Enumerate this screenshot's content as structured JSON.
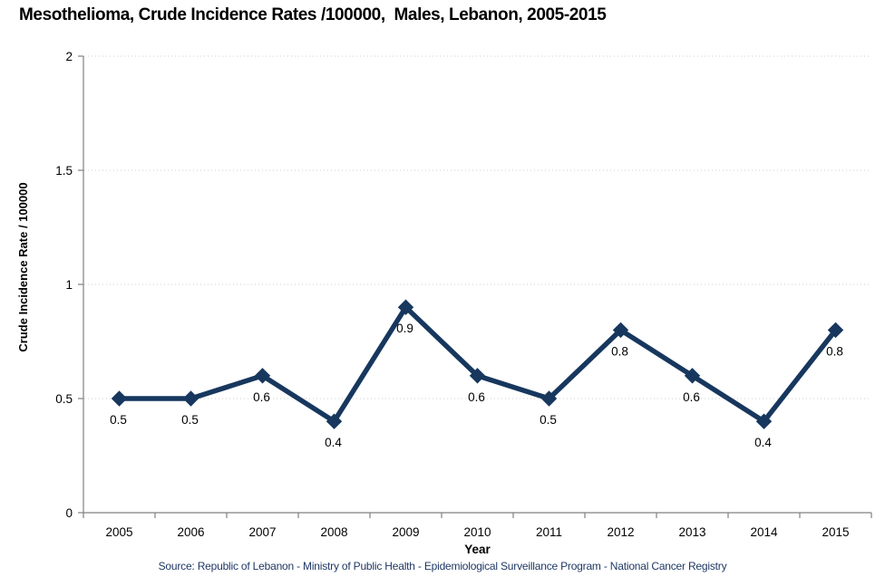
{
  "chart": {
    "title": "Mesothelioma, Crude Incidence Rates /100000,  Males, Lebanon, 2005-2015",
    "xlabel": "Year",
    "ylabel": "Crude Incidence Rate / 100000",
    "source": "Source: Republic of Lebanon - Ministry of Public Health - Epidemiological Surveillance Program - National Cancer Registry"
  },
  "chart_data": {
    "type": "line",
    "title": "Mesothelioma, Crude Incidence Rates /100000, Males, Lebanon, 2005-2015",
    "categories": [
      "2005",
      "2006",
      "2007",
      "2008",
      "2009",
      "2010",
      "2011",
      "2012",
      "2013",
      "2014",
      "2015"
    ],
    "values": [
      0.5,
      0.5,
      0.6,
      0.4,
      0.9,
      0.6,
      0.5,
      0.8,
      0.6,
      0.4,
      0.8
    ],
    "data_labels": [
      "0.5",
      "0.5",
      "0.6",
      "0.4",
      "0.9",
      "0.6",
      "0.5",
      "0.8",
      "0.6",
      "0.4",
      "0.8"
    ],
    "xlabel": "Year",
    "ylabel": "Crude Incidence Rate / 100000",
    "ylim": [
      0,
      2
    ],
    "yticks": [
      "0",
      "0.5",
      "1",
      "1.5",
      "2"
    ],
    "grid": "horizontal-dotted",
    "legend": "none",
    "marker": "diamond",
    "colors": {
      "line": "#17375E",
      "marker": "#17375E",
      "data_label": "#000000",
      "tick_label": "#000000",
      "axis": "#808080",
      "gridline": "#CDCDCD",
      "source_text": "#1F3864"
    }
  }
}
